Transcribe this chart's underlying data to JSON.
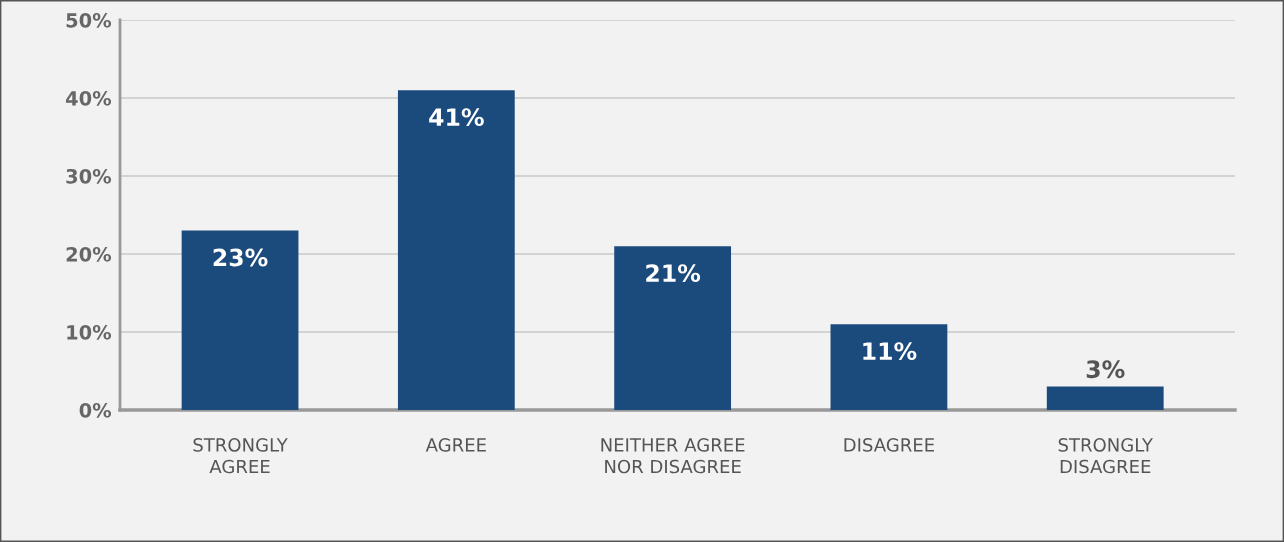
{
  "chart_data": {
    "type": "bar",
    "categories": [
      "STRONGLY\nAGREE",
      "AGREE",
      "NEITHER AGREE\nNOR DISAGREE",
      "DISAGREE",
      "STRONGLY\nDISAGREE"
    ],
    "values": [
      23,
      41,
      21,
      11,
      3
    ],
    "value_labels": [
      "23%",
      "41%",
      "21%",
      "11%",
      "3%"
    ],
    "color": "#1b4a7d",
    "ylim": [
      0,
      50
    ],
    "yticks": [
      {
        "value": 0,
        "label": "0%"
      },
      {
        "value": 10,
        "label": "10%"
      },
      {
        "value": 20,
        "label": "20%"
      },
      {
        "value": 30,
        "label": "30%"
      },
      {
        "value": 40,
        "label": "40%"
      },
      {
        "value": 50,
        "label": "50%"
      }
    ],
    "grid": "y",
    "legend": false
  }
}
